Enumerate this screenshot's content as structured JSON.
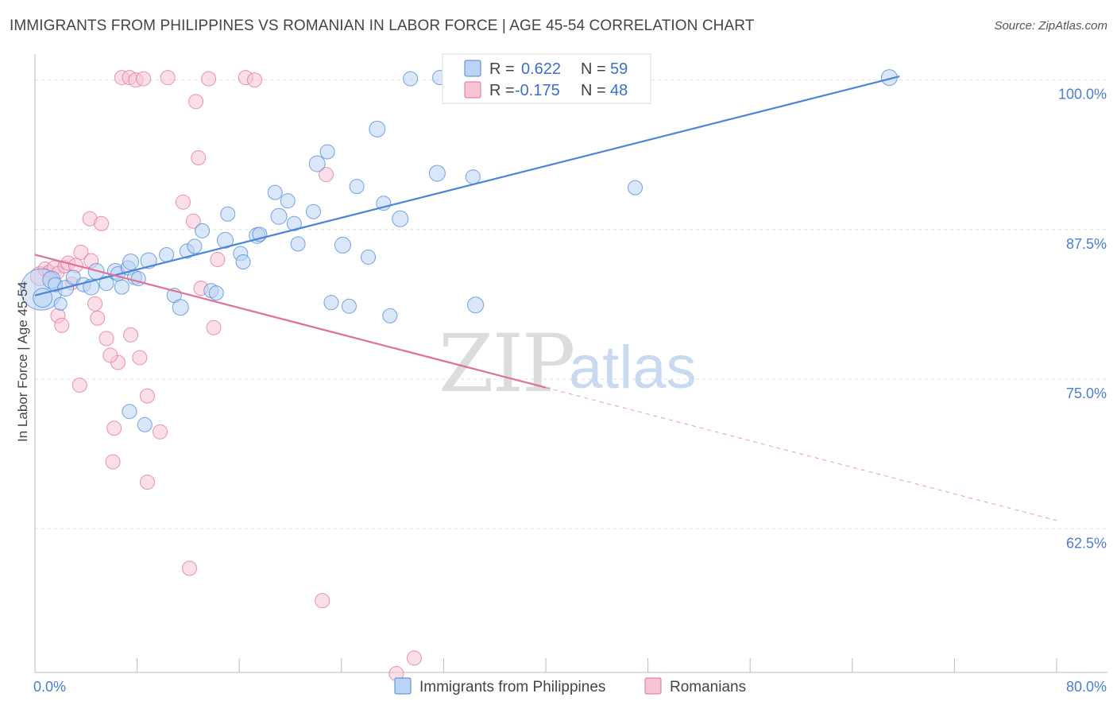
{
  "title": "IMMIGRANTS FROM PHILIPPINES VS ROMANIAN IN LABOR FORCE | AGE 45-54 CORRELATION CHART",
  "source": "Source: ZipAtlas.com",
  "watermark": {
    "zip": "ZIP",
    "atlas": "atlas"
  },
  "colors": {
    "blue": "#4a86d8",
    "blue_fill": "#bcd4f3",
    "pink": "#e07099",
    "pink_fill": "#f7c4d6",
    "grid": "#dddddd",
    "axis_text": "#4a7fd0"
  },
  "legend": {
    "rows": [
      {
        "r_label": "R =",
        "r_value": "0.622",
        "n_label": "N =",
        "n_value": "59",
        "color": "blue"
      },
      {
        "r_label": "R =",
        "r_value": "-0.175",
        "n_label": "N =",
        "n_value": "48",
        "color": "pink"
      }
    ]
  },
  "chart_data": {
    "type": "scatter",
    "title": "IMMIGRANTS FROM PHILIPPINES VS ROMANIAN IN LABOR FORCE | AGE 45-54 CORRELATION CHART",
    "xlabel": "",
    "ylabel": "In Labor Force | Age 45-54",
    "xlim": [
      0,
      80
    ],
    "ylim": [
      50.5,
      101.5
    ],
    "x_tick_labels": [
      {
        "value": 0,
        "label": "0.0%"
      },
      {
        "value": 80,
        "label": "80.0%"
      }
    ],
    "y_tick_labels": [
      {
        "value": 100,
        "label": "100.0%"
      },
      {
        "value": 87.5,
        "label": "87.5%"
      },
      {
        "value": 75,
        "label": "75.0%"
      },
      {
        "value": 62.5,
        "label": "62.5%"
      }
    ],
    "gridlines_y": [
      100,
      87.5,
      75,
      62.5
    ],
    "series": [
      {
        "name": "Immigrants from Philippines",
        "color": "blue",
        "R": 0.622,
        "N": 59,
        "trend": {
          "x0": 0,
          "y0": 82.0,
          "x1": 67.7,
          "y1": 100.3
        },
        "points": [
          [
            0.5,
            82.5,
            26
          ],
          [
            1.3,
            83.3,
            11
          ],
          [
            1.6,
            82.9,
            9
          ],
          [
            2.4,
            82.6,
            10
          ],
          [
            3.0,
            83.5,
            9
          ],
          [
            4.8,
            84.0,
            10
          ],
          [
            3.8,
            82.9,
            9
          ],
          [
            4.4,
            82.7,
            10
          ],
          [
            5.6,
            83.0,
            9
          ],
          [
            6.3,
            84.0,
            10
          ],
          [
            6.5,
            83.8,
            9
          ],
          [
            6.8,
            82.7,
            9
          ],
          [
            7.3,
            84.3,
            9
          ],
          [
            7.5,
            84.8,
            10
          ],
          [
            7.8,
            83.5,
            9
          ],
          [
            8.1,
            83.4,
            9
          ],
          [
            8.9,
            84.9,
            10
          ],
          [
            10.3,
            85.4,
            9
          ],
          [
            10.9,
            82.0,
            9
          ],
          [
            11.4,
            81.0,
            10
          ],
          [
            11.9,
            85.7,
            9
          ],
          [
            12.5,
            86.1,
            9
          ],
          [
            13.1,
            87.4,
            9
          ],
          [
            13.8,
            82.4,
            9
          ],
          [
            14.2,
            82.2,
            9
          ],
          [
            14.9,
            86.6,
            10
          ],
          [
            15.1,
            88.8,
            9
          ],
          [
            16.1,
            85.5,
            9
          ],
          [
            16.3,
            84.8,
            9
          ],
          [
            17.4,
            87.0,
            10
          ],
          [
            17.6,
            87.1,
            9
          ],
          [
            18.8,
            90.6,
            9
          ],
          [
            19.1,
            88.6,
            10
          ],
          [
            19.8,
            89.9,
            9
          ],
          [
            20.3,
            88.0,
            9
          ],
          [
            20.6,
            86.3,
            9
          ],
          [
            21.8,
            89.0,
            9
          ],
          [
            22.1,
            93.0,
            10
          ],
          [
            22.9,
            94.0,
            9
          ],
          [
            23.2,
            81.4,
            9
          ],
          [
            24.1,
            86.2,
            10
          ],
          [
            24.6,
            81.1,
            9
          ],
          [
            25.2,
            91.1,
            9
          ],
          [
            26.1,
            85.2,
            9
          ],
          [
            26.8,
            95.9,
            10
          ],
          [
            27.3,
            89.7,
            9
          ],
          [
            27.8,
            80.3,
            9
          ],
          [
            28.6,
            88.4,
            10
          ],
          [
            29.4,
            100.1,
            9
          ],
          [
            31.5,
            92.2,
            10
          ],
          [
            34.3,
            91.9,
            9
          ],
          [
            34.5,
            81.2,
            10
          ],
          [
            47.0,
            91.0,
            9
          ],
          [
            66.9,
            100.2,
            10
          ],
          [
            7.4,
            72.3,
            9
          ],
          [
            8.6,
            71.2,
            9
          ],
          [
            31.7,
            100.2,
            9
          ],
          [
            0.6,
            81.8,
            12
          ],
          [
            2.0,
            81.3,
            8
          ]
        ]
      },
      {
        "name": "Romanians",
        "color": "pink",
        "R": -0.175,
        "N": 48,
        "trend": {
          "x0": 0,
          "y0": 85.4,
          "x1": 40.0,
          "y1": 74.3
        },
        "trend_extension": {
          "x0": 40.0,
          "y0": 74.3,
          "x1": 80.0,
          "y1": 63.2
        },
        "points": [
          [
            0.4,
            83.6,
            12
          ],
          [
            0.8,
            84.2,
            9
          ],
          [
            1.1,
            84.0,
            8
          ],
          [
            1.5,
            84.3,
            9
          ],
          [
            1.8,
            83.9,
            8
          ],
          [
            2.3,
            84.4,
            8
          ],
          [
            2.6,
            84.7,
            9
          ],
          [
            2.9,
            83.0,
            8
          ],
          [
            3.2,
            84.5,
            9
          ],
          [
            3.6,
            85.6,
            9
          ],
          [
            4.4,
            84.9,
            9
          ],
          [
            4.7,
            81.3,
            9
          ],
          [
            4.9,
            80.1,
            9
          ],
          [
            5.6,
            78.4,
            9
          ],
          [
            6.5,
            76.4,
            9
          ],
          [
            7.5,
            78.7,
            9
          ],
          [
            8.2,
            76.8,
            9
          ],
          [
            8.8,
            73.6,
            9
          ],
          [
            9.8,
            70.6,
            9
          ],
          [
            11.6,
            89.8,
            9
          ],
          [
            12.4,
            88.2,
            9
          ],
          [
            12.8,
            93.5,
            9
          ],
          [
            13.0,
            82.6,
            9
          ],
          [
            14.0,
            79.3,
            9
          ],
          [
            14.3,
            85.0,
            9
          ],
          [
            5.9,
            77.0,
            9
          ],
          [
            6.2,
            70.9,
            9
          ],
          [
            1.8,
            80.3,
            9
          ],
          [
            2.1,
            79.5,
            9
          ],
          [
            3.5,
            74.5,
            9
          ],
          [
            4.3,
            88.4,
            9
          ],
          [
            5.2,
            88.0,
            9
          ],
          [
            6.8,
            100.2,
            9
          ],
          [
            7.4,
            100.2,
            9
          ],
          [
            7.9,
            100.0,
            9
          ],
          [
            8.5,
            100.1,
            9
          ],
          [
            10.4,
            100.2,
            9
          ],
          [
            13.6,
            100.1,
            9
          ],
          [
            16.5,
            100.2,
            9
          ],
          [
            17.2,
            100.0,
            9
          ],
          [
            12.6,
            98.2,
            9
          ],
          [
            22.8,
            92.1,
            9
          ],
          [
            8.8,
            66.4,
            9
          ],
          [
            6.1,
            68.1,
            9
          ],
          [
            12.1,
            59.2,
            9
          ],
          [
            22.5,
            56.5,
            9
          ],
          [
            29.7,
            51.7,
            9
          ],
          [
            28.3,
            50.4,
            9
          ]
        ]
      }
    ],
    "legend_position": "top-center"
  }
}
